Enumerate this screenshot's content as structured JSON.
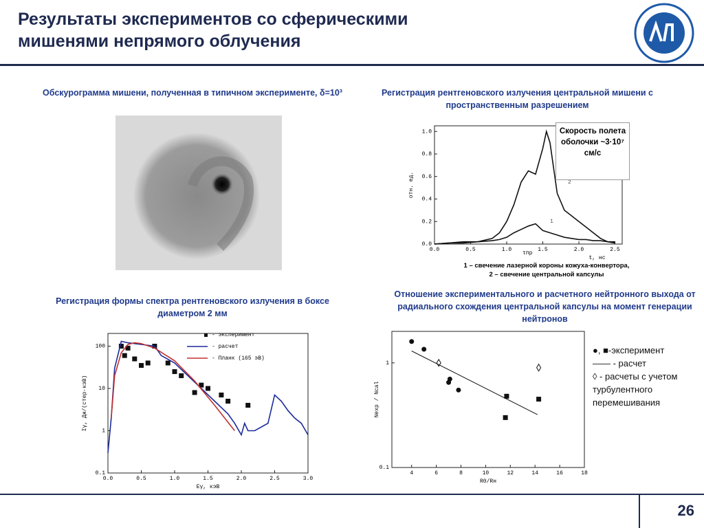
{
  "header": {
    "title": [
      "Результаты экспериментов со сферическими",
      "мишенями непрямого облучения"
    ]
  },
  "captions": [
    "Обскурограмма мишени, полученная в типичном эксперименте, δ=10³",
    "Регистрация рентгеновского излучения центральной мишени с пространственным разрешением",
    "Регистрация формы спектра рентгеновского излучения в боксе диаметром 2 мм",
    "Отношение экспериментального и расчетного нейтронного выхода от радиального схождения центральной капсулы на момент генерации нейтронов"
  ],
  "notes": {
    "box": "Скорость полета оболочки ~3·10⁷ см/с",
    "legend1": "1 – свечение лазерной короны кожуха-конвертора,",
    "legend2": "2 – свечение центральной капсулы"
  },
  "chart_data": [
    {
      "type": "line",
      "ylabel": "отн. ед.",
      "xlabel": "t, нс",
      "annotation": "τпр",
      "xlim": [
        0,
        2.6
      ],
      "ylim": [
        0,
        1.05
      ],
      "xticks": [
        {
          "value": 0,
          "label": "0.0"
        },
        0.5,
        {
          "value": 1,
          "label": "1.0"
        },
        1.5,
        {
          "value": 2,
          "label": "2.0"
        },
        2.5
      ],
      "yticks": [
        {
          "value": 0,
          "label": "0.0"
        },
        0.2,
        0.4,
        0.6,
        0.8,
        {
          "value": 1,
          "label": "1.0"
        }
      ],
      "x": [
        0,
        0.2,
        0.4,
        0.6,
        0.8,
        0.9,
        1.0,
        1.1,
        1.2,
        1.3,
        1.4,
        1.5,
        1.55,
        1.6,
        1.7,
        1.8,
        1.9,
        2.0,
        2.1,
        2.2,
        2.3,
        2.4,
        2.5
      ],
      "series": [
        {
          "name": "1",
          "color": "#111",
          "values": [
            0,
            0.01,
            0.01,
            0.02,
            0.03,
            0.04,
            0.06,
            0.1,
            0.13,
            0.16,
            0.18,
            0.12,
            0.11,
            0.1,
            0.08,
            0.06,
            0.05,
            0.04,
            0.04,
            0.03,
            0.03,
            0.02,
            0.02
          ]
        },
        {
          "name": "2",
          "color": "#111",
          "values": [
            0,
            0.01,
            0.02,
            0.02,
            0.05,
            0.1,
            0.2,
            0.35,
            0.55,
            0.65,
            0.62,
            0.85,
            1.0,
            0.9,
            0.45,
            0.3,
            0.25,
            0.2,
            0.15,
            0.1,
            0.05,
            0.02,
            0.01
          ]
        }
      ]
    },
    {
      "type": "line",
      "ylabel": "Iγ, Дж/(стер·кэВ)",
      "xlabel": "Eγ, кэВ",
      "ylog": true,
      "xlim": [
        0,
        3.0
      ],
      "ylim": [
        0.1,
        200
      ],
      "xticks": [
        {
          "value": 0,
          "label": "0.0"
        },
        0.5,
        {
          "value": 1,
          "label": "1.0"
        },
        1.5,
        {
          "value": 2,
          "label": "2.0"
        },
        2.5,
        {
          "value": 3,
          "label": "3.0"
        }
      ],
      "yticks": [
        0.1,
        1,
        10,
        100
      ],
      "series": [
        {
          "name": "- эксперимент",
          "color": "#111",
          "marker": "square",
          "x": [
            0.2,
            0.25,
            0.3,
            0.4,
            0.5,
            0.6,
            0.7,
            0.9,
            1.0,
            1.1,
            1.3,
            1.4,
            1.5,
            1.7,
            1.8,
            2.1
          ],
          "values": [
            100,
            60,
            90,
            50,
            35,
            40,
            100,
            40,
            25,
            20,
            8,
            12,
            10,
            7,
            5,
            4
          ]
        },
        {
          "name": "- расчет",
          "color": "#1a2a9a",
          "x": [
            0,
            0.05,
            0.1,
            0.2,
            0.3,
            0.5,
            0.7,
            0.8,
            1.0,
            1.2,
            1.4,
            1.6,
            1.8,
            1.9,
            2.0,
            2.05,
            2.1,
            2.2,
            2.4,
            2.5,
            2.6,
            2.7,
            2.8,
            2.9,
            3.0
          ],
          "values": [
            0.3,
            2,
            30,
            130,
            120,
            110,
            100,
            60,
            40,
            20,
            10,
            5,
            2.5,
            1.5,
            0.8,
            1.5,
            1.0,
            1.0,
            1.5,
            7,
            5,
            3,
            2,
            1.5,
            0.8
          ]
        },
        {
          "name": "- Планк (165 эВ)",
          "color": "#c03030",
          "x": [
            0.05,
            0.1,
            0.2,
            0.3,
            0.4,
            0.5,
            0.7,
            1.0,
            1.3,
            1.6,
            1.9
          ],
          "values": [
            2,
            20,
            70,
            110,
            120,
            115,
            90,
            45,
            15,
            4,
            1
          ]
        }
      ]
    },
    {
      "type": "scatter",
      "ylabel": "Nexp / Ncal",
      "xlabel": "R0/Rн",
      "ylog": true,
      "xlim": [
        2.4,
        18
      ],
      "ylim": [
        0.1,
        2
      ],
      "xticks": [
        4,
        6,
        8,
        10,
        12,
        14,
        16,
        18
      ],
      "yticks": [
        0.1,
        1
      ],
      "series": [
        {
          "color": "#111",
          "marker": "circle",
          "x": [
            4,
            5,
            7,
            7.1,
            7.8
          ],
          "values": [
            1.6,
            1.35,
            0.65,
            0.7,
            0.55
          ]
        },
        {
          "color": "#111",
          "marker": "square",
          "x": [
            11.7,
            11.6,
            14.3
          ],
          "values": [
            0.48,
            0.3,
            0.45
          ]
        },
        {
          "color": "#111",
          "marker": "diamond",
          "x": [
            6.2,
            14.3
          ],
          "values": [
            1.0,
            0.9
          ]
        },
        {
          "color": "#111",
          "x": [
            4,
            14.2
          ],
          "values": [
            1.3,
            0.32
          ]
        }
      ],
      "legend": [
        "●, ■-эксперимент",
        "—— - расчет",
        "◊ - расчеты с учетом турбулентного перемешивания"
      ]
    }
  ],
  "page_number": "26"
}
